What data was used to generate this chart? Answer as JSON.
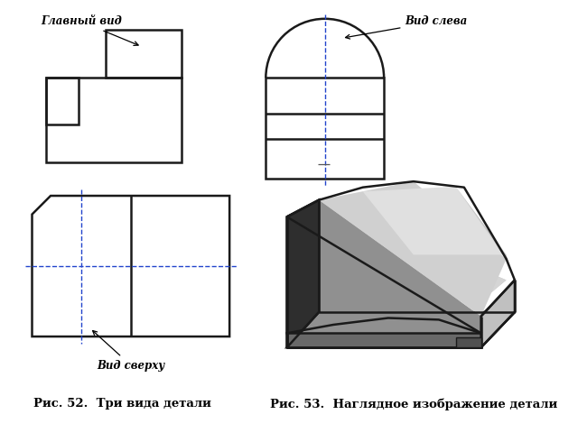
{
  "fig_width": 6.4,
  "fig_height": 4.8,
  "dpi": 100,
  "bg_color": "#ffffff",
  "line_color": "#1a1a1a",
  "lw": 1.8,
  "label_glavny": "Главный вид",
  "label_sleva": "Вид слева",
  "label_sverhu": "Вид сверху",
  "caption1": "Рис. 52.  Три вида детали",
  "caption2": "Рис. 53.  Наглядное изображение детали",
  "font_size_label": 8.5,
  "font_size_caption": 9.5
}
